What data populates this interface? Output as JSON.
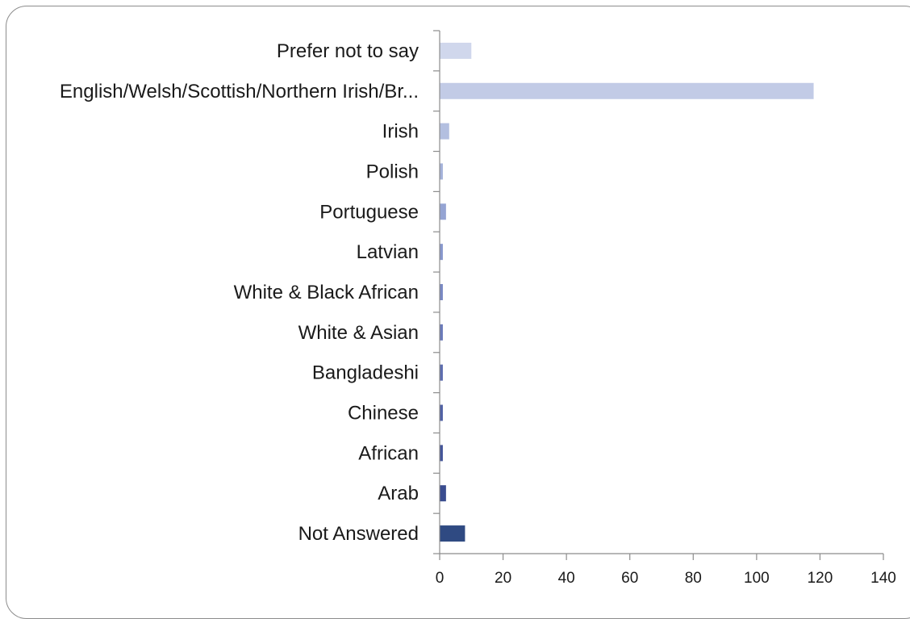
{
  "chart_data": {
    "type": "bar",
    "orientation": "horizontal",
    "categories": [
      "Prefer not to say",
      "English/Welsh/Scottish/Northern Irish/Br...",
      "Irish",
      "Polish",
      "Portuguese",
      "Latvian",
      "White & Black African",
      "White & Asian",
      "Bangladeshi",
      "Chinese",
      "African",
      "Arab",
      "Not Answered"
    ],
    "values": [
      10,
      118,
      3,
      1,
      2,
      1,
      1,
      1,
      1,
      1,
      1,
      2,
      8
    ],
    "bar_colors": [
      "#d0d7ec",
      "#c2cbe6",
      "#b3bfe0",
      "#a4b2da",
      "#95a4d3",
      "#8797cc",
      "#7888c3",
      "#6a7ab9",
      "#5d6daf",
      "#5061a4",
      "#445599",
      "#3a4c8f",
      "#2f4a82"
    ],
    "xlim": [
      0,
      140
    ],
    "xticks": [
      0,
      20,
      40,
      60,
      80,
      100,
      120,
      140
    ],
    "title": "",
    "xlabel": "",
    "ylabel": "",
    "grid": false,
    "legend": "none"
  }
}
